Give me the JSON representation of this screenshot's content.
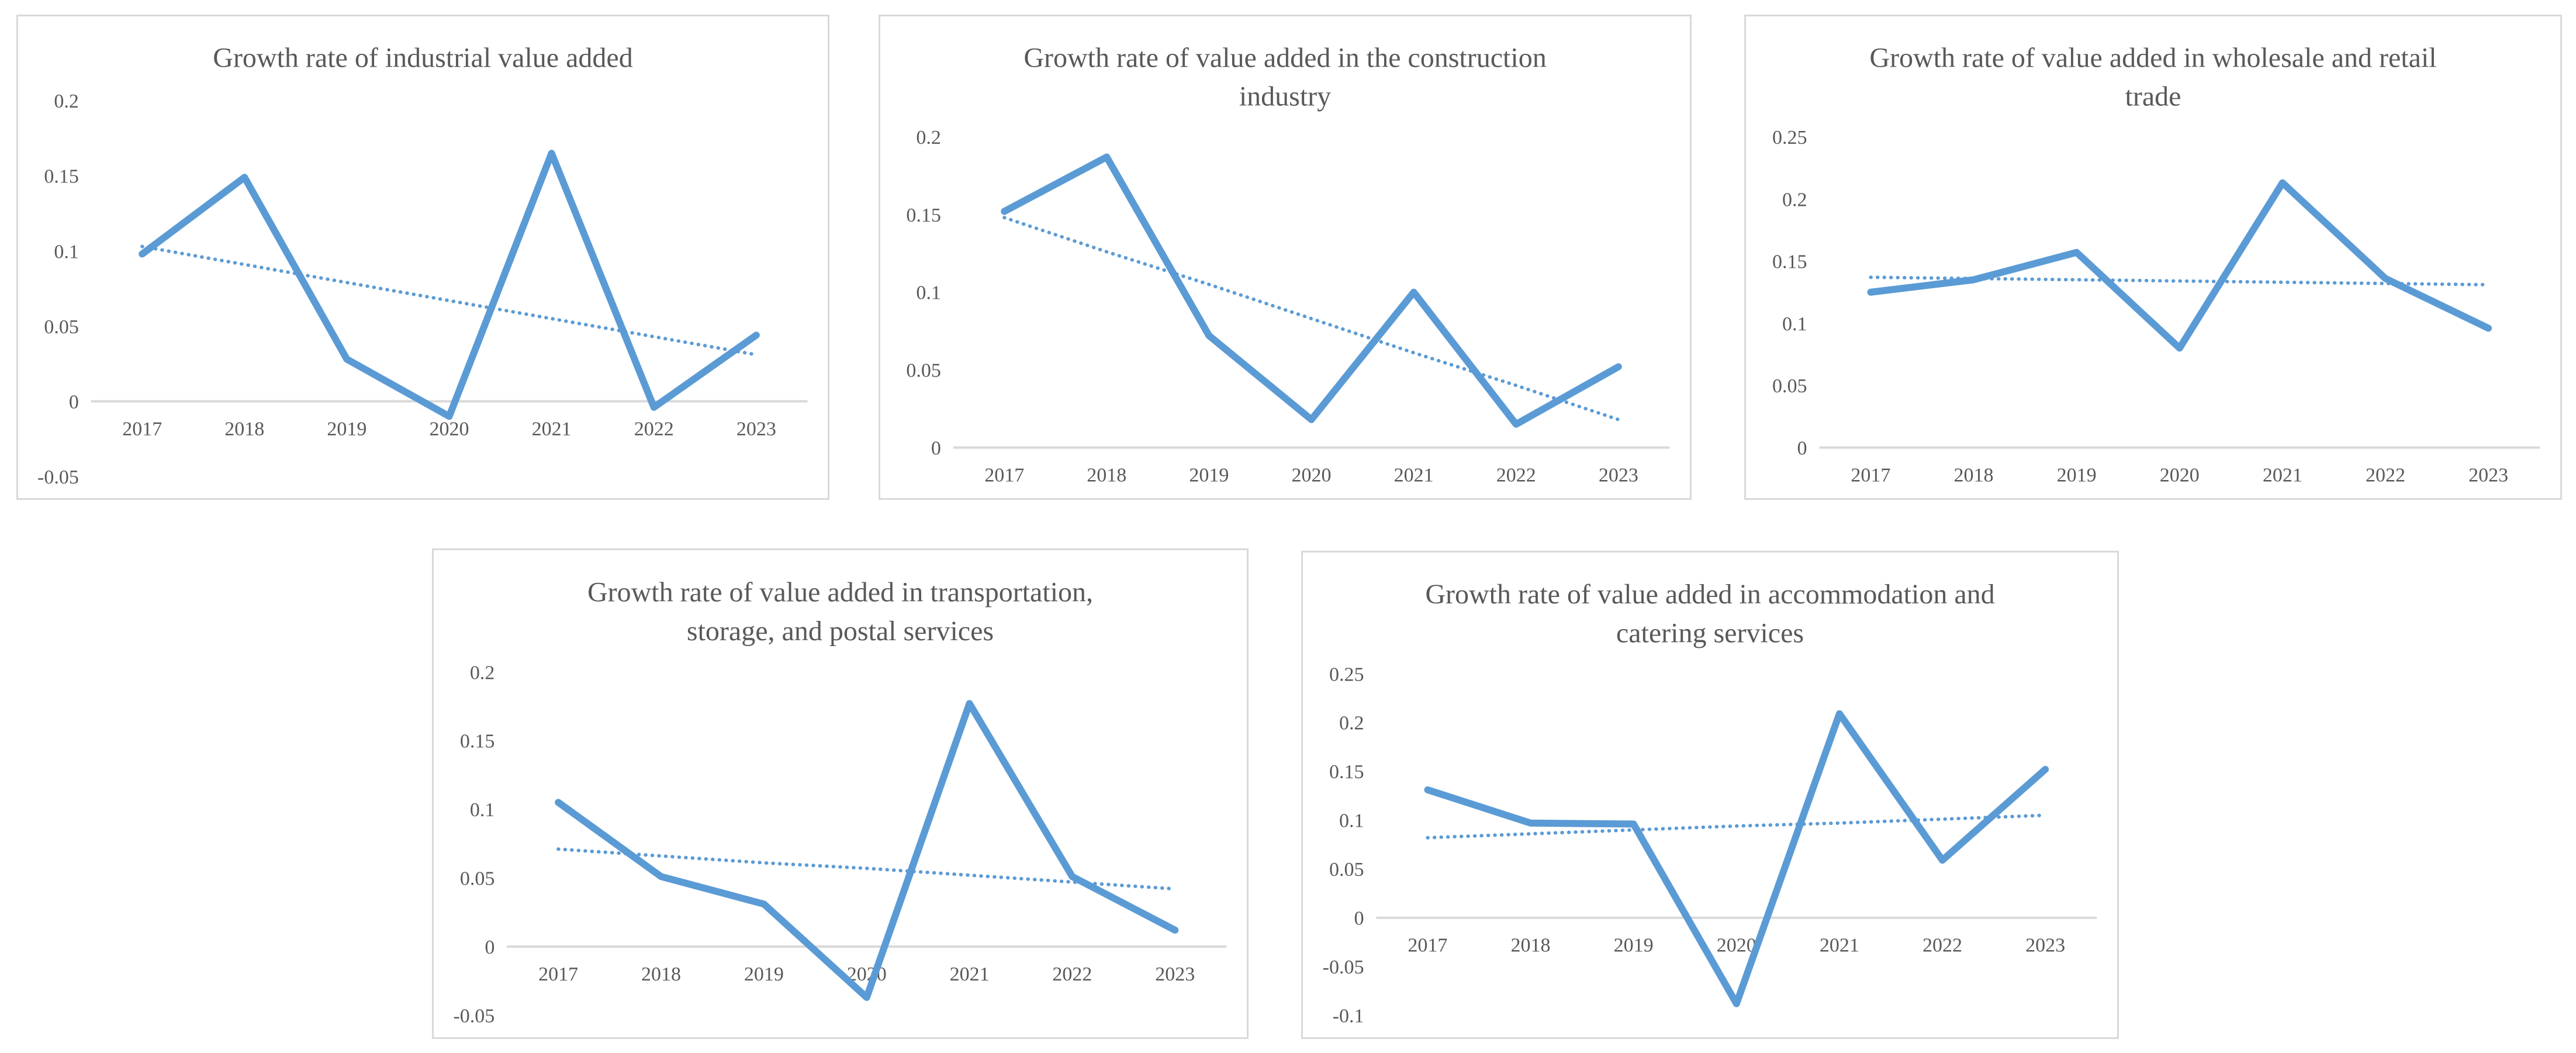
{
  "page": {
    "description": "Five line charts of sector growth rates, 2017-2023, each with a solid data line and a dotted linear trendline",
    "background": "#ffffff"
  },
  "colors": {
    "series_line": "#5B9BD5",
    "trendline": "#5B9BD5",
    "axis_line": "#D9D9D9",
    "text": "#595959",
    "panel_border": "#D9D9D9"
  },
  "chart_data": [
    {
      "type": "line",
      "title": "Growth rate of industrial value added",
      "title_lines": [
        "Growth rate of industrial value added"
      ],
      "categories": [
        "2017",
        "2018",
        "2019",
        "2020",
        "2021",
        "2022",
        "2023"
      ],
      "series": [
        {
          "name": "growth rate",
          "style": "solid",
          "values": [
            0.098,
            0.149,
            0.028,
            -0.01,
            0.165,
            -0.004,
            0.044
          ]
        },
        {
          "name": "linear trendline",
          "style": "dotted",
          "values": [
            0.103,
            0.091,
            0.079,
            0.067,
            0.055,
            0.043,
            0.031
          ]
        }
      ],
      "y_ticks": [
        0.2,
        0.15,
        0.1,
        0.05,
        0,
        -0.05
      ],
      "ylim": [
        -0.05,
        0.2
      ],
      "xlabel": "",
      "ylabel": "",
      "grid": false,
      "legend": false
    },
    {
      "type": "line",
      "title": "Growth rate of value added in the construction industry",
      "title_lines": [
        "Growth rate of value added in the construction",
        "industry"
      ],
      "categories": [
        "2017",
        "2018",
        "2019",
        "2020",
        "2021",
        "2022",
        "2023"
      ],
      "series": [
        {
          "name": "growth rate",
          "style": "solid",
          "values": [
            0.152,
            0.187,
            0.072,
            0.018,
            0.1,
            0.015,
            0.052
          ]
        },
        {
          "name": "linear trendline",
          "style": "dotted",
          "values": [
            0.148,
            0.126,
            0.105,
            0.083,
            0.061,
            0.04,
            0.018
          ]
        }
      ],
      "y_ticks": [
        0.2,
        0.15,
        0.1,
        0.05,
        0
      ],
      "ylim": [
        0,
        0.2
      ],
      "xlabel": "",
      "ylabel": "",
      "grid": false,
      "legend": false
    },
    {
      "type": "line",
      "title": "Growth rate of value added in wholesale and retail trade",
      "title_lines": [
        "Growth rate of value added in wholesale and retail",
        "trade"
      ],
      "categories": [
        "2017",
        "2018",
        "2019",
        "2020",
        "2021",
        "2022",
        "2023"
      ],
      "series": [
        {
          "name": "growth rate",
          "style": "solid",
          "values": [
            0.125,
            0.135,
            0.157,
            0.08,
            0.213,
            0.136,
            0.096
          ]
        },
        {
          "name": "linear trendline",
          "style": "dotted",
          "values": [
            0.137,
            0.136,
            0.135,
            0.134,
            0.133,
            0.132,
            0.131
          ]
        }
      ],
      "y_ticks": [
        0.25,
        0.2,
        0.15,
        0.1,
        0.05,
        0
      ],
      "ylim": [
        0,
        0.25
      ],
      "xlabel": "",
      "ylabel": "",
      "grid": false,
      "legend": false
    },
    {
      "type": "line",
      "title": "Growth rate of value added in transportation, storage, and postal services",
      "title_lines": [
        "Growth rate of value added in transportation,",
        "storage, and postal services"
      ],
      "categories": [
        "2017",
        "2018",
        "2019",
        "2020",
        "2021",
        "2022",
        "2023"
      ],
      "series": [
        {
          "name": "growth rate",
          "style": "solid",
          "values": [
            0.105,
            0.051,
            0.031,
            -0.037,
            0.177,
            0.051,
            0.012
          ]
        },
        {
          "name": "linear trendline",
          "style": "dotted",
          "values": [
            0.071,
            0.066,
            0.061,
            0.057,
            0.052,
            0.047,
            0.042
          ]
        }
      ],
      "y_ticks": [
        0.2,
        0.15,
        0.1,
        0.05,
        0,
        -0.05
      ],
      "ylim": [
        -0.05,
        0.2
      ],
      "xlabel": "",
      "ylabel": "",
      "grid": false,
      "legend": false
    },
    {
      "type": "line",
      "title": "Growth rate of value added in accommodation and catering services",
      "title_lines": [
        "Growth rate of value added in accommodation and",
        "catering services"
      ],
      "categories": [
        "2017",
        "2018",
        "2019",
        "2020",
        "2021",
        "2022",
        "2023"
      ],
      "series": [
        {
          "name": "growth rate",
          "style": "solid",
          "values": [
            0.131,
            0.097,
            0.096,
            -0.088,
            0.209,
            0.059,
            0.152
          ]
        },
        {
          "name": "linear trendline",
          "style": "dotted",
          "values": [
            0.082,
            0.086,
            0.09,
            0.094,
            0.097,
            0.101,
            0.105
          ]
        }
      ],
      "y_ticks": [
        0.25,
        0.2,
        0.15,
        0.1,
        0.05,
        0,
        -0.05,
        -0.1
      ],
      "ylim": [
        -0.1,
        0.25
      ],
      "xlabel": "",
      "ylabel": "",
      "grid": false,
      "legend": false
    }
  ]
}
